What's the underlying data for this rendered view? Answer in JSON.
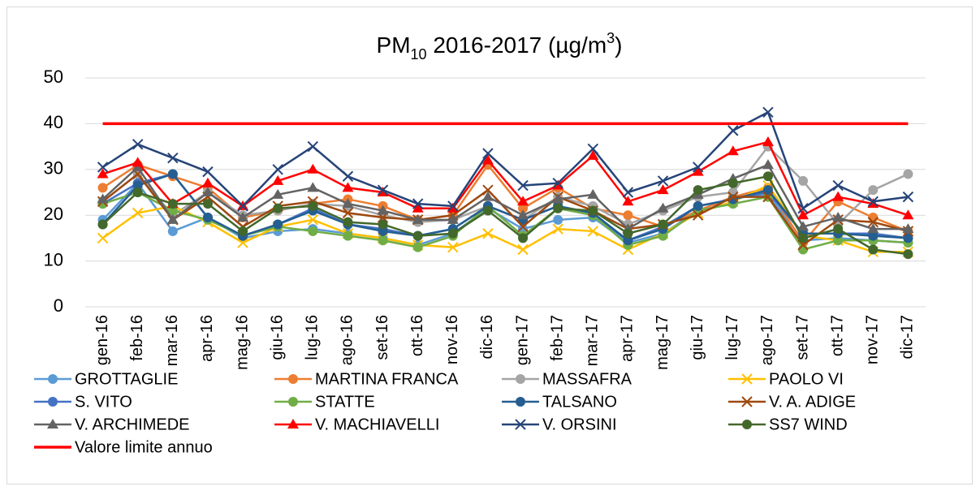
{
  "chart_data": {
    "type": "line",
    "title": [
      {
        "text": "PM"
      },
      {
        "text": "10",
        "shift": "sub"
      },
      {
        "text": " 2016-2017 (µg/m"
      },
      {
        "text": "3",
        "shift": "super"
      },
      {
        "text": ")"
      }
    ],
    "categories": [
      "gen-16",
      "feb-16",
      "mar-16",
      "apr-16",
      "mag-16",
      "giu-16",
      "lug-16",
      "ago-16",
      "set-16",
      "ott-16",
      "nov-16",
      "dic-16",
      "gen-17",
      "feb-17",
      "mar-17",
      "apr-17",
      "mag-17",
      "giu-17",
      "lug-17",
      "ago-17",
      "set-17",
      "ott-17",
      "nov-17",
      "dic-17"
    ],
    "ylim": [
      0,
      50
    ],
    "yticks": [
      0,
      10,
      20,
      30,
      40,
      50
    ],
    "grid": true,
    "legend": "bottom",
    "series": [
      {
        "name": "GROTTAGLIE",
        "color": "#5b9bd5",
        "marker": "circle",
        "values": [
          19,
          27,
          16.5,
          19.5,
          15,
          16.5,
          17,
          16,
          15,
          13.5,
          16,
          21.5,
          17,
          19,
          19.5,
          14,
          16,
          21,
          24,
          24.5,
          14.5,
          15,
          14.5,
          14
        ]
      },
      {
        "name": "MARTINA FRANCA",
        "color": "#ed7d31",
        "marker": "circle",
        "values": [
          26,
          31,
          28.5,
          26,
          19.5,
          21,
          22.5,
          23.5,
          22,
          19,
          20,
          31,
          21.5,
          26,
          21.5,
          20,
          17.5,
          21,
          24,
          26,
          14,
          23,
          19.5,
          16.5
        ]
      },
      {
        "name": "MASSAFRA",
        "color": "#a5a5a5",
        "marker": "circle",
        "values": [
          23,
          29,
          20,
          25,
          20,
          21,
          22.5,
          22,
          20,
          18.5,
          19,
          22,
          19,
          24,
          22,
          18,
          21,
          24,
          25,
          35,
          27.5,
          18,
          25.5,
          29
        ]
      },
      {
        "name": "PAOLO VI",
        "color": "#ffc000",
        "marker": "x",
        "values": [
          15,
          20.5,
          22,
          18.5,
          14,
          17.5,
          19,
          16,
          15,
          13.5,
          13,
          16,
          12.5,
          17,
          16.5,
          12.5,
          16,
          20.5,
          23,
          26.5,
          15.5,
          14.5,
          12,
          12
        ]
      },
      {
        "name": "S. VITO",
        "color": "#4472c4",
        "marker": "circle",
        "values": [
          22.5,
          27,
          29,
          19.5,
          15.5,
          18,
          21.5,
          18,
          17,
          15.5,
          17,
          22,
          19,
          22,
          20,
          14.5,
          17.5,
          22,
          23.5,
          25,
          16,
          16,
          16,
          15
        ]
      },
      {
        "name": "STATTE",
        "color": "#70ad47",
        "marker": "circle",
        "values": [
          22.5,
          25,
          21,
          19,
          15.5,
          17.5,
          16.5,
          15.5,
          14.5,
          13,
          15.5,
          22,
          15.5,
          21.5,
          20,
          13.5,
          15.5,
          21,
          22.5,
          24,
          12.5,
          14.5,
          14.5,
          14
        ]
      },
      {
        "name": "TALSANO",
        "color": "#255e91",
        "marker": "circle",
        "values": [
          18,
          26.5,
          29,
          19.5,
          15.5,
          18,
          21,
          18,
          16.5,
          15.5,
          17,
          22,
          19,
          22,
          20.5,
          14.5,
          17,
          22,
          23.5,
          25.5,
          16,
          16,
          15.5,
          15
        ]
      },
      {
        "name": "V. A. ADIGE",
        "color": "#9e480e",
        "marker": "x",
        "values": [
          23,
          29,
          19,
          24,
          17.5,
          22,
          23,
          20.5,
          19.5,
          19,
          20,
          25.5,
          17.5,
          24,
          21,
          17,
          18,
          20,
          24,
          24,
          13.5,
          19,
          18.5,
          16.5
        ]
      },
      {
        "name": "V. ARCHIMEDE",
        "color": "#636363",
        "marker": "triangle",
        "values": [
          23.5,
          30.5,
          19,
          25,
          19.5,
          24.5,
          26,
          22.5,
          21,
          19,
          19,
          24,
          20,
          23.5,
          24.5,
          17,
          21.5,
          24.5,
          28,
          31,
          17.5,
          19.5,
          17,
          17
        ]
      },
      {
        "name": "V. MACHIAVELLI",
        "color": "#ff0000",
        "marker": "triangle",
        "values": [
          29,
          31.5,
          22.5,
          27,
          22,
          27.5,
          30,
          26,
          25,
          21.5,
          21.5,
          32,
          23,
          26.5,
          33,
          23,
          25.5,
          29.5,
          34,
          36,
          20,
          24,
          22.5,
          20
        ]
      },
      {
        "name": "V. ORSINI",
        "color": "#264478",
        "marker": "x",
        "values": [
          30.5,
          35.5,
          32.5,
          29.5,
          22,
          30,
          35,
          28.5,
          25.5,
          22.5,
          22,
          33.5,
          26.5,
          27,
          34.5,
          25,
          27.5,
          30.5,
          38.5,
          42.5,
          21.5,
          26.5,
          23,
          24
        ]
      },
      {
        "name": "SS7 WIND",
        "color": "#43682b",
        "marker": "circle",
        "values": [
          18,
          25,
          22.5,
          22.5,
          16.5,
          21.5,
          22,
          18.5,
          18,
          15.5,
          16,
          21,
          15,
          21.5,
          21,
          16,
          18,
          25.5,
          27,
          28.5,
          15,
          17,
          12.5,
          11.5
        ]
      },
      {
        "name": "Valore limite annuo",
        "color": "#ff0000",
        "marker": "none",
        "values": [
          40,
          40,
          40,
          40,
          40,
          40,
          40,
          40,
          40,
          40,
          40,
          40,
          40,
          40,
          40,
          40,
          40,
          40,
          40,
          40,
          40,
          40,
          40,
          40
        ]
      }
    ]
  }
}
